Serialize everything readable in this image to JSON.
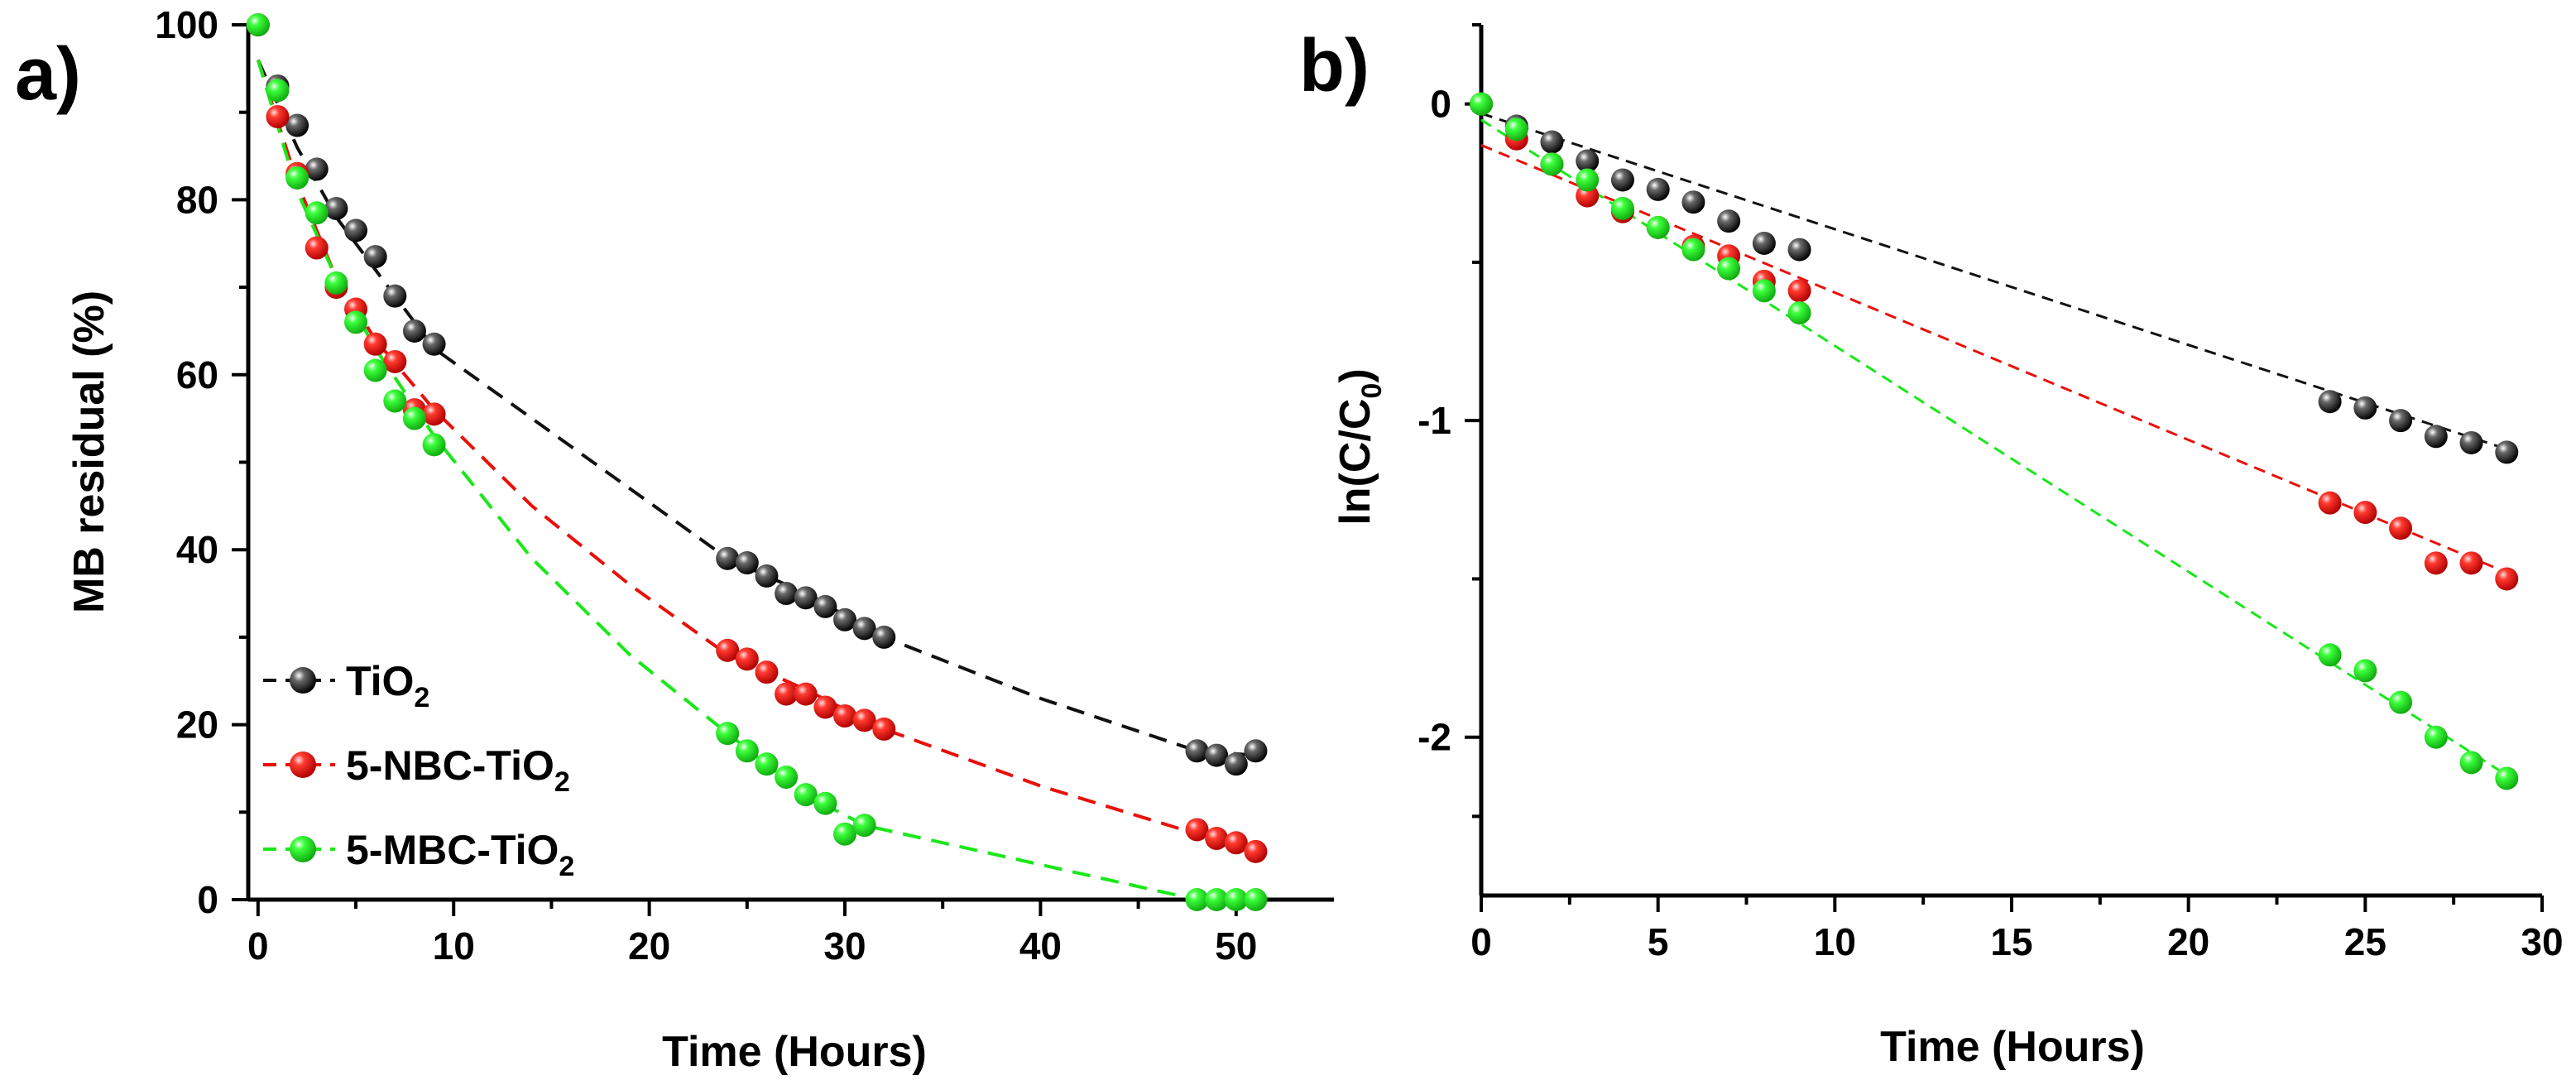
{
  "colors": {
    "black": "#111111",
    "red": "#e8100a",
    "green": "#19e819"
  },
  "chart_data": [
    {
      "panel_label": "a)",
      "type": "scatter",
      "xlabel": "Time (Hours)",
      "ylabel": "MB residual (%)",
      "xlim": [
        -0.5,
        55
      ],
      "ylim": [
        0,
        100
      ],
      "xticks": [
        0,
        10,
        20,
        30,
        40,
        50
      ],
      "yticks": [
        0,
        20,
        40,
        60,
        80,
        100
      ],
      "legend": {
        "position": "bottom-left"
      },
      "series": [
        {
          "name": "TiO2",
          "name_main": "TiO",
          "name_sub": "2",
          "color": "black",
          "x": [
            0,
            1,
            2,
            3,
            4,
            5,
            6,
            7,
            8,
            9,
            24,
            25,
            26,
            27,
            28,
            29,
            30,
            31,
            32,
            48,
            49,
            50,
            51
          ],
          "y": [
            100,
            93,
            88.5,
            83.5,
            79,
            76.5,
            73.5,
            69,
            65,
            63.5,
            39,
            38.5,
            37,
            35,
            34.5,
            33.5,
            32,
            31,
            30,
            17,
            16.5,
            15.5,
            17
          ],
          "fit_x": [
            0,
            2,
            4,
            6,
            9,
            14,
            19,
            24,
            28,
            32,
            40,
            48,
            51
          ],
          "fit_y": [
            96,
            86,
            78,
            72,
            63,
            55,
            47,
            39,
            35,
            30,
            23,
            17,
            16.5
          ]
        },
        {
          "name": "5-NBC-TiO2",
          "name_main": "5-NBC-TiO",
          "name_sub": "2",
          "color": "red",
          "x": [
            0,
            1,
            2,
            3,
            4,
            5,
            6,
            7,
            8,
            9,
            24,
            25,
            26,
            27,
            28,
            29,
            30,
            31,
            32,
            48,
            49,
            50,
            51
          ],
          "y": [
            100,
            89.5,
            83,
            74.5,
            70,
            67.5,
            63.5,
            61.5,
            56,
            55.5,
            28.5,
            27.5,
            26,
            23.5,
            23.5,
            22,
            21,
            20.5,
            19.5,
            8,
            7,
            6.5,
            5.5
          ],
          "fit_x": [
            0,
            2,
            4,
            6,
            9,
            14,
            19,
            24,
            28,
            32,
            40,
            48,
            51
          ],
          "fit_y": [
            96,
            82,
            71,
            64,
            56,
            45,
            36,
            28,
            24,
            19.5,
            13,
            7.5,
            6
          ]
        },
        {
          "name": "5-MBC-TiO2",
          "name_main": "5-MBC-TiO",
          "name_sub": "2",
          "color": "green",
          "x": [
            0,
            1,
            2,
            3,
            4,
            5,
            6,
            7,
            8,
            9,
            24,
            25,
            26,
            27,
            28,
            29,
            30,
            31,
            48,
            49,
            50,
            51
          ],
          "y": [
            100,
            92.5,
            82.5,
            78.5,
            70.5,
            66,
            60.5,
            57,
            55,
            52,
            19,
            17,
            15.5,
            14,
            12,
            11,
            7.5,
            8.5,
            0,
            0,
            0,
            0
          ],
          "fit_x": [
            0,
            2,
            4,
            6,
            9,
            14,
            19,
            24,
            28,
            31,
            40,
            48,
            51
          ],
          "fit_y": [
            96,
            81,
            71,
            63,
            53,
            39,
            28,
            19,
            12,
            8.5,
            4,
            0,
            0
          ]
        }
      ]
    },
    {
      "panel_label": "b)",
      "type": "scatter",
      "xlabel": "Time (Hours)",
      "ylabel": "ln(C/C0)",
      "ylabel_main": "ln(C/C",
      "ylabel_sub": "0",
      "ylabel_end": ")",
      "xlim": [
        0,
        30
      ],
      "ylim": [
        -2.5,
        0.25
      ],
      "xticks": [
        0,
        5,
        10,
        15,
        20,
        25,
        30
      ],
      "yticks": [
        -2,
        -1,
        0
      ],
      "series": [
        {
          "name": "TiO2",
          "color": "black",
          "x": [
            0,
            1,
            2,
            3,
            4,
            5,
            6,
            7,
            8,
            9,
            24,
            25,
            26,
            27,
            28,
            29
          ],
          "y": [
            0,
            -0.07,
            -0.12,
            -0.18,
            -0.24,
            -0.27,
            -0.31,
            -0.37,
            -0.44,
            -0.46,
            -0.94,
            -0.96,
            -1.0,
            -1.05,
            -1.07,
            -1.1
          ],
          "fit_x": [
            0,
            29
          ],
          "fit_y": [
            -0.03,
            -1.09
          ]
        },
        {
          "name": "5-NBC-TiO2",
          "color": "red",
          "x": [
            0,
            1,
            2,
            3,
            4,
            5,
            6,
            7,
            8,
            9,
            24,
            25,
            26,
            27,
            28,
            29
          ],
          "y": [
            0,
            -0.11,
            -0.19,
            -0.29,
            -0.34,
            -0.39,
            -0.45,
            -0.48,
            -0.56,
            -0.59,
            -1.26,
            -1.29,
            -1.34,
            -1.45,
            -1.45,
            -1.5
          ],
          "fit_x": [
            0,
            29
          ],
          "fit_y": [
            -0.13,
            -1.48
          ]
        },
        {
          "name": "5-MBC-TiO2",
          "color": "green",
          "x": [
            0,
            1,
            2,
            3,
            4,
            5,
            6,
            7,
            8,
            9,
            24,
            25,
            26,
            27,
            28,
            29
          ],
          "y": [
            0,
            -0.08,
            -0.19,
            -0.24,
            -0.33,
            -0.39,
            -0.46,
            -0.52,
            -0.59,
            -0.66,
            -1.74,
            -1.79,
            -1.89,
            -2.0,
            -2.08,
            -2.13
          ],
          "fit_x": [
            0,
            29
          ],
          "fit_y": [
            -0.05,
            -2.12
          ]
        }
      ]
    }
  ]
}
